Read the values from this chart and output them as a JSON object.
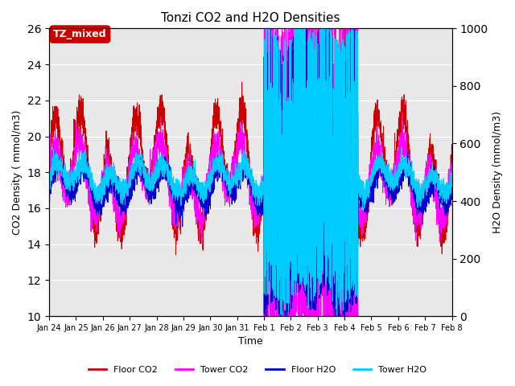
{
  "title": "Tonzi CO2 and H2O Densities",
  "xlabel": "Time",
  "ylabel_left": "CO2 Density ( mmol/m3)",
  "ylabel_right": "H2O Density (mmol/m3)",
  "ylim_left": [
    10,
    26
  ],
  "ylim_right": [
    0,
    1000
  ],
  "annotation_text": "TZ_mixed",
  "annotation_facecolor": "#cc0000",
  "annotation_textcolor": "white",
  "annotation_edgecolor": "#cc0000",
  "background_color": "#e8e8e8",
  "plot_bg_color": "#e8e8e8",
  "legend_entries": [
    "Floor CO2",
    "Tower CO2",
    "Floor H2O",
    "Tower H2O"
  ],
  "legend_colors": [
    "#cc0000",
    "#ff00ff",
    "#0000cc",
    "#00ccff"
  ],
  "xtick_labels": [
    "Jan 24",
    "Jan 25",
    "Jan 26",
    "Jan 27",
    "Jan 28",
    "Jan 29",
    "Jan 30",
    "Jan 31",
    "Feb 1",
    "Feb 2",
    "Feb 3",
    "Feb 4",
    "Feb 5",
    "Feb 6",
    "Feb 7",
    "Feb 8"
  ],
  "n_points": 3600,
  "seed": 42
}
